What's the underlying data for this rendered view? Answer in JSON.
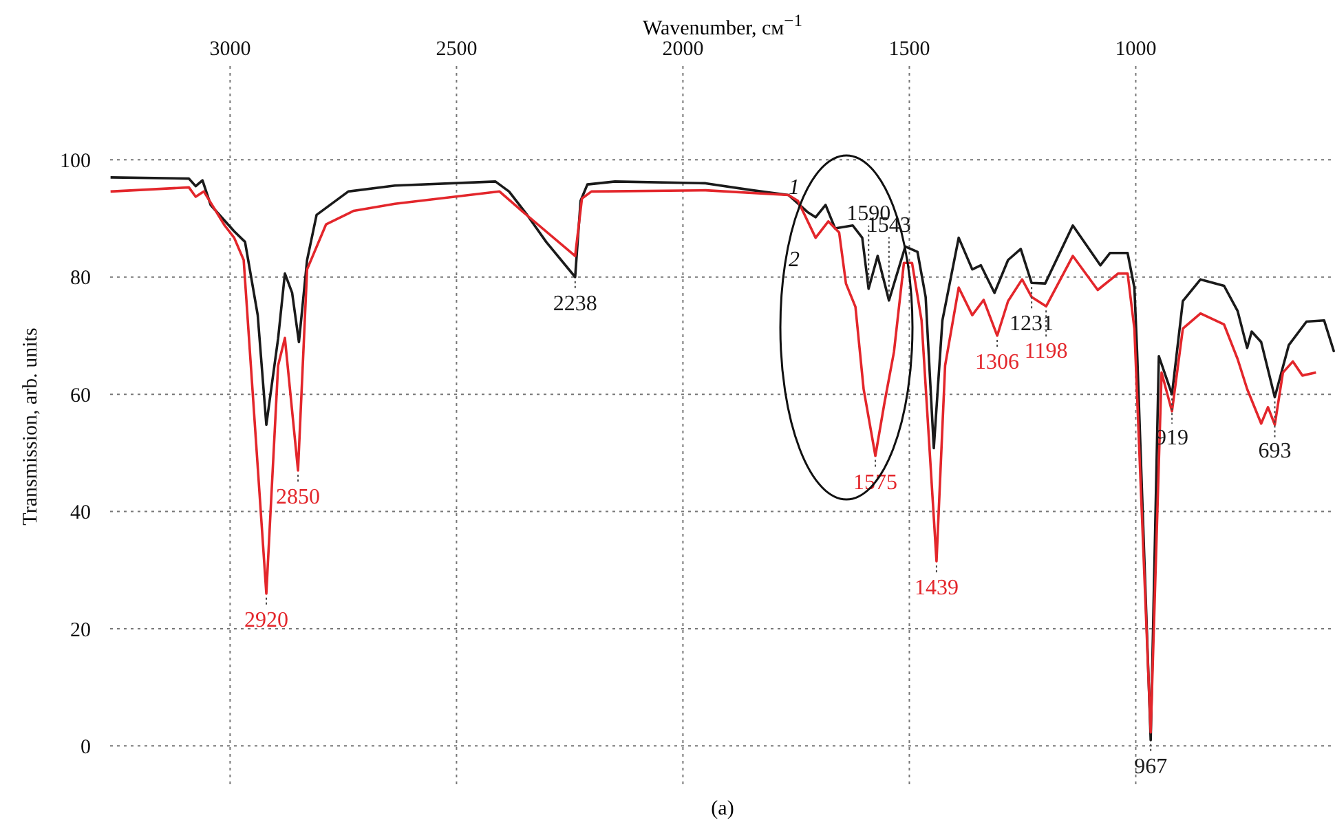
{
  "chart_data": {
    "type": "line",
    "xlabel": "Wavenumber, см$^{−1}$",
    "ylabel": "Transmission, arb. units",
    "xlim": [
      3265,
      560
    ],
    "xticks": [
      3000,
      2500,
      2000,
      1500,
      1000
    ],
    "ylim": [
      -7,
      116
    ],
    "yticks": [
      0,
      20,
      40,
      60,
      80,
      100
    ],
    "grid": true,
    "series": [
      {
        "name": "1",
        "color": "#1a1a1a",
        "x": [
          3264,
          3091,
          3076,
          3061,
          3043,
          2991,
          2967,
          2939,
          2920,
          2894,
          2879,
          2863,
          2848,
          2830,
          2809,
          2739,
          2636,
          2414,
          2384,
          2344,
          2302,
          2238,
          2226,
          2211,
          2150,
          1950,
          1846,
          1767,
          1725,
          1707,
          1685,
          1664,
          1625,
          1604,
          1590,
          1570,
          1545,
          1509,
          1482,
          1464,
          1446,
          1427,
          1391,
          1361,
          1342,
          1312,
          1282,
          1254,
          1230,
          1200,
          1139,
          1078,
          1057,
          1018,
          1003,
          997,
          967,
          949,
          920,
          896,
          857,
          805,
          775,
          754,
          744,
          723,
          693,
          662,
          623,
          584,
          562
        ],
        "values": [
          97,
          96.8,
          95.5,
          96.5,
          92.3,
          87.8,
          86,
          73.5,
          54.8,
          69.5,
          80.6,
          77.3,
          68.9,
          82.9,
          90.6,
          94.6,
          95.6,
          96.3,
          94.6,
          90.6,
          86,
          80,
          93,
          95.8,
          96.3,
          96,
          94.8,
          94,
          91.1,
          90.2,
          92.3,
          88.3,
          88.8,
          86.7,
          78,
          83.6,
          76,
          85.2,
          84.3,
          76.6,
          50.8,
          72.6,
          86.7,
          81.3,
          82,
          77.3,
          82.9,
          84.8,
          79,
          78.9,
          88.8,
          82,
          84.1,
          84.1,
          78.2,
          67.2,
          1,
          66.5,
          60,
          75.9,
          79.6,
          78.5,
          74.2,
          67.9,
          70.7,
          68.9,
          59.5,
          68.4,
          72.4,
          72.6,
          67.2
        ]
      },
      {
        "name": "2",
        "color": "#e3262b",
        "x": [
          3264,
          3091,
          3076,
          3058,
          3012,
          2991,
          2970,
          2920,
          2894,
          2879,
          2850,
          2830,
          2788,
          2727,
          2636,
          2405,
          2353,
          2238,
          2223,
          2202,
          1950,
          1767,
          1746,
          1707,
          1679,
          1655,
          1640,
          1619,
          1601,
          1575,
          1555,
          1534,
          1512,
          1494,
          1473,
          1440,
          1421,
          1391,
          1361,
          1336,
          1306,
          1282,
          1251,
          1230,
          1198,
          1139,
          1084,
          1039,
          1018,
          1003,
          967,
          943,
          920,
          896,
          857,
          805,
          775,
          754,
          723,
          708,
          693,
          675,
          653,
          632,
          602
        ],
        "values": [
          94.6,
          95.3,
          93.7,
          94.6,
          88.8,
          86.7,
          82.9,
          26,
          64.9,
          69.6,
          47,
          81.3,
          89,
          91.3,
          92.5,
          94.6,
          91.1,
          83.6,
          93.4,
          94.6,
          94.8,
          94,
          93,
          86.7,
          89.5,
          87.6,
          78.9,
          74.9,
          60.9,
          49.5,
          58.5,
          67.2,
          82.4,
          82.4,
          72.6,
          31.5,
          64.9,
          78.2,
          73.5,
          76.1,
          70,
          75.9,
          79.6,
          76.6,
          75,
          83.6,
          77.8,
          80.6,
          80.6,
          71.2,
          2.3,
          63.7,
          57.1,
          71.2,
          73.8,
          71.9,
          66,
          60.9,
          55,
          57.8,
          54.8,
          63.7,
          65.6,
          63.2,
          63.7
        ]
      }
    ],
    "annotations": [
      {
        "text": "2920",
        "x": 2920,
        "y": 26
      },
      {
        "text": "2850",
        "x": 2850,
        "y": 47
      },
      {
        "text": "2238",
        "x": 2238,
        "y": 80
      },
      {
        "text": "1590",
        "x": 1590,
        "y": 78
      },
      {
        "text": "1575",
        "x": 1575,
        "y": 49.5
      },
      {
        "text": "1543",
        "x": 1545,
        "y": 76
      },
      {
        "text": "1439",
        "x": 1440,
        "y": 31.5
      },
      {
        "text": "1306",
        "x": 1306,
        "y": 70
      },
      {
        "text": "1231",
        "x": 1230,
        "y": 79
      },
      {
        "text": "1198",
        "x": 1198,
        "y": 75
      },
      {
        "text": "967",
        "x": 967,
        "y": 1
      },
      {
        "text": "919",
        "x": 920,
        "y": 60
      },
      {
        "text": "693",
        "x": 693,
        "y": 59.5
      },
      "(a)"
    ]
  }
}
